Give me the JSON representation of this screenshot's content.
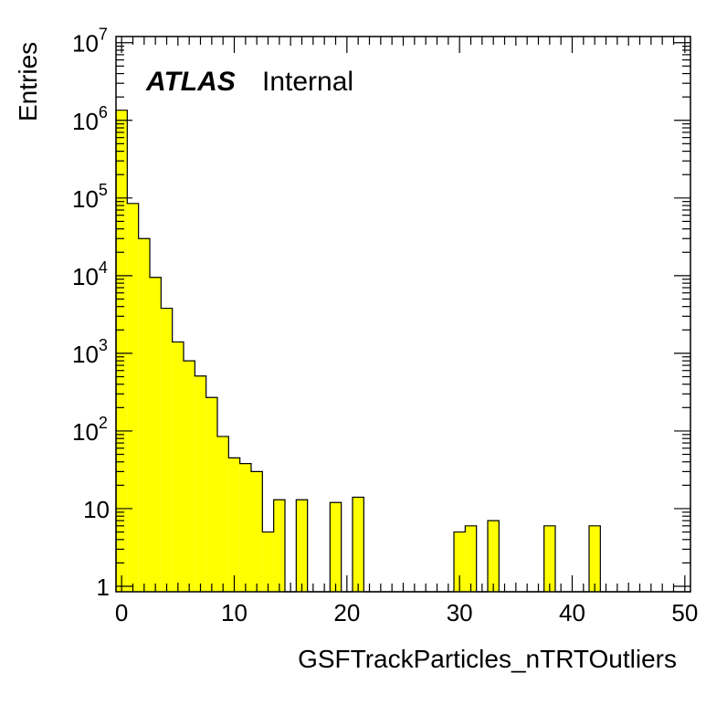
{
  "chart_data": {
    "type": "bar",
    "histogram": true,
    "xlabel": "GSFTrackParticles_nTRTOutliers",
    "ylabel": "Entries",
    "xlim": [
      -0.5,
      50.5
    ],
    "ylim": [
      0.85,
      12000000
    ],
    "yscale": "log",
    "bin_width": 1,
    "fill_color": "#ffff00",
    "line_color": "#000000",
    "x_tick_labels": [
      "0",
      "10",
      "20",
      "30",
      "40",
      "50"
    ],
    "x_tick_values": [
      0,
      10,
      20,
      30,
      40,
      50
    ],
    "y_tick_labels": [
      {
        "value": 1,
        "base": "1",
        "exp": ""
      },
      {
        "value": 10,
        "base": "10",
        "exp": ""
      },
      {
        "value": 100,
        "base": "10",
        "exp": "2"
      },
      {
        "value": 1000,
        "base": "10",
        "exp": "3"
      },
      {
        "value": 10000,
        "base": "10",
        "exp": "4"
      },
      {
        "value": 100000,
        "base": "10",
        "exp": "5"
      },
      {
        "value": 1000000,
        "base": "10",
        "exp": "6"
      },
      {
        "value": 10000000,
        "base": "10",
        "exp": "7"
      }
    ],
    "bins_x": [
      0,
      1,
      2,
      3,
      4,
      5,
      6,
      7,
      8,
      9,
      10,
      11,
      12,
      13,
      14,
      15,
      16,
      17,
      18,
      19,
      20,
      21,
      22,
      23,
      24,
      25,
      26,
      27,
      28,
      29,
      30,
      31,
      32,
      33,
      34,
      35,
      36,
      37,
      38,
      39,
      40,
      41,
      42,
      43,
      44,
      45,
      46,
      47,
      48,
      49,
      50
    ],
    "values": [
      1350000,
      85000,
      30000,
      9500,
      3800,
      1400,
      800,
      510,
      270,
      85,
      45,
      38,
      30,
      5,
      13,
      0,
      13,
      0,
      0,
      12,
      0,
      14,
      0,
      0,
      0,
      0,
      0,
      0,
      0,
      0,
      5,
      6,
      0,
      7,
      0,
      0,
      0,
      0,
      6,
      0,
      0,
      0,
      6,
      0,
      0,
      0,
      0,
      0,
      0,
      0,
      0
    ]
  },
  "label": {
    "atlas": "ATLAS",
    "status": "Internal"
  }
}
